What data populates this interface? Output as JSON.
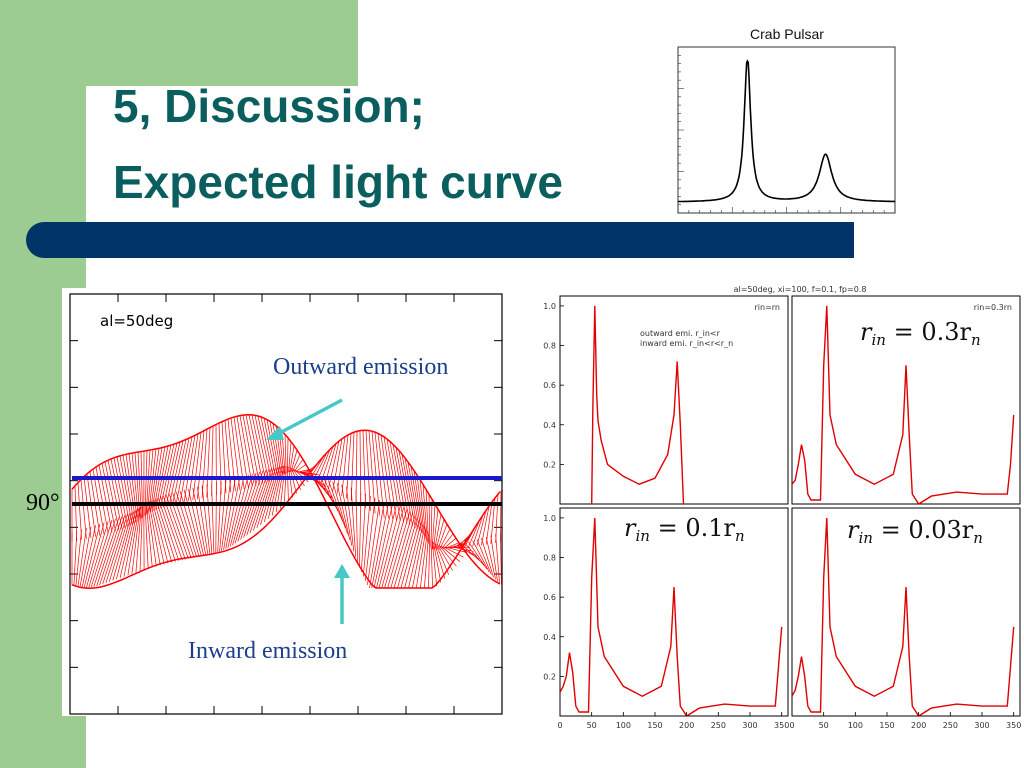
{
  "slide": {
    "title_line1": "5, Discussion;",
    "title_line2": "Expected light curve"
  },
  "inset": {
    "title": "Crab Pulsar"
  },
  "left_figure": {
    "corner_label": "al=50deg",
    "outward_label": "Outward emission",
    "inward_label": "Inward emission",
    "angle_label": "90°",
    "colors": {
      "emission": "#ff0000",
      "blue_line": "#1a1acc",
      "arrow": "#47c8c8"
    }
  },
  "grid_figure": {
    "header": "al=50deg, xi=100, f=0.1, fp=0.8",
    "panels": [
      {
        "id": "top-left",
        "small_label": "rin=rn",
        "legend_line1": "outward emi. r_in<r",
        "legend_line2": "inward emi. r_in<r<r_n",
        "big_label": ""
      },
      {
        "id": "top-right",
        "small_label": "rin=0.3rn",
        "big_label_prefix": "r",
        "big_label_sub": "in",
        "big_label_eq": " = 0.3r",
        "big_label_sub2": "n"
      },
      {
        "id": "bottom-left",
        "small_label": "",
        "big_label_prefix": "r",
        "big_label_sub": "in",
        "big_label_eq": " = 0.1r",
        "big_label_sub2": "n"
      },
      {
        "id": "bottom-right",
        "small_label": "",
        "big_label_prefix": "r",
        "big_label_sub": "in",
        "big_label_eq": " = 0.03r",
        "big_label_sub2": "n"
      }
    ],
    "x_ticks": [
      "0",
      "50",
      "100",
      "150",
      "200",
      "250",
      "300",
      "350"
    ],
    "y_ticks_top": [
      "1.0",
      "0.8",
      "0.6",
      "0.4",
      "0.2"
    ],
    "y_ticks_bottom": [
      "1.0",
      "0.8",
      "0.6",
      "0.4",
      "0.2"
    ]
  },
  "chart_data": [
    {
      "type": "line",
      "title": "Crab Pulsar",
      "xlabel": "",
      "ylabel": "",
      "description_series": [
        {
          "x": [
            0,
            0.1,
            0.2,
            0.25,
            0.3,
            0.32,
            0.35,
            0.4,
            0.5,
            0.6,
            0.65,
            0.68,
            0.7,
            0.75,
            0.8,
            0.9,
            1.0
          ],
          "y": [
            0.02,
            0.03,
            0.05,
            0.12,
            0.6,
            1.0,
            0.4,
            0.12,
            0.08,
            0.12,
            0.22,
            0.33,
            0.25,
            0.08,
            0.03,
            0.01,
            0.01
          ]
        }
      ]
    },
    {
      "type": "line",
      "title": "al=50deg, xi=100, f=0.1, fp=0.8",
      "xlim": [
        0,
        360
      ],
      "ylim": [
        0,
        1.05
      ],
      "panels": [
        {
          "name": "rin=rn",
          "x": [
            50,
            52,
            55,
            58,
            60,
            65,
            75,
            100,
            125,
            150,
            170,
            180,
            185,
            190,
            195
          ],
          "y": [
            0,
            0.5,
            1.0,
            0.55,
            0.42,
            0.32,
            0.2,
            0.14,
            0.1,
            0.13,
            0.25,
            0.45,
            0.72,
            0.4,
            0
          ]
        },
        {
          "name": "rin=0.3rn",
          "x": [
            0,
            5,
            10,
            15,
            20,
            25,
            30,
            45,
            50,
            55,
            60,
            70,
            100,
            130,
            160,
            175,
            180,
            185,
            190,
            200,
            220,
            260,
            300,
            340,
            345,
            350
          ],
          "y": [
            0.1,
            0.12,
            0.2,
            0.3,
            0.22,
            0.05,
            0.02,
            0.02,
            0.7,
            1.0,
            0.45,
            0.3,
            0.15,
            0.1,
            0.15,
            0.35,
            0.7,
            0.35,
            0.05,
            0.0,
            0.04,
            0.06,
            0.05,
            0.05,
            0.2,
            0.45
          ]
        },
        {
          "name": "rin=0.1rn",
          "x": [
            0,
            5,
            10,
            15,
            20,
            25,
            30,
            45,
            50,
            55,
            60,
            70,
            100,
            130,
            160,
            175,
            180,
            185,
            190,
            200,
            220,
            260,
            300,
            340,
            345,
            350
          ],
          "y": [
            0.12,
            0.15,
            0.2,
            0.32,
            0.22,
            0.05,
            0.02,
            0.02,
            0.7,
            1.0,
            0.45,
            0.3,
            0.15,
            0.1,
            0.15,
            0.35,
            0.65,
            0.3,
            0.05,
            0.0,
            0.04,
            0.06,
            0.05,
            0.05,
            0.25,
            0.45
          ]
        },
        {
          "name": "rin=0.03rn",
          "x": [
            0,
            5,
            10,
            15,
            20,
            25,
            30,
            45,
            50,
            55,
            60,
            70,
            100,
            130,
            160,
            175,
            180,
            185,
            190,
            200,
            220,
            260,
            300,
            340,
            345,
            350
          ],
          "y": [
            0.1,
            0.13,
            0.2,
            0.3,
            0.2,
            0.05,
            0.02,
            0.02,
            0.7,
            1.0,
            0.45,
            0.3,
            0.15,
            0.1,
            0.15,
            0.35,
            0.65,
            0.3,
            0.05,
            0.0,
            0.04,
            0.06,
            0.05,
            0.05,
            0.25,
            0.45
          ]
        }
      ]
    }
  ]
}
